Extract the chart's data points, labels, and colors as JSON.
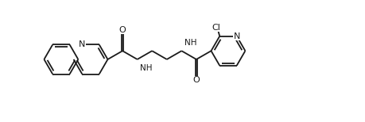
{
  "bg_color": "#ffffff",
  "line_color": "#1a1a1a",
  "line_width": 1.3,
  "font_size": 7.5,
  "xlim": [
    0,
    9.5
  ],
  "ylim": [
    -0.5,
    3.2
  ],
  "figsize": [
    4.59,
    1.54
  ],
  "dpi": 100
}
